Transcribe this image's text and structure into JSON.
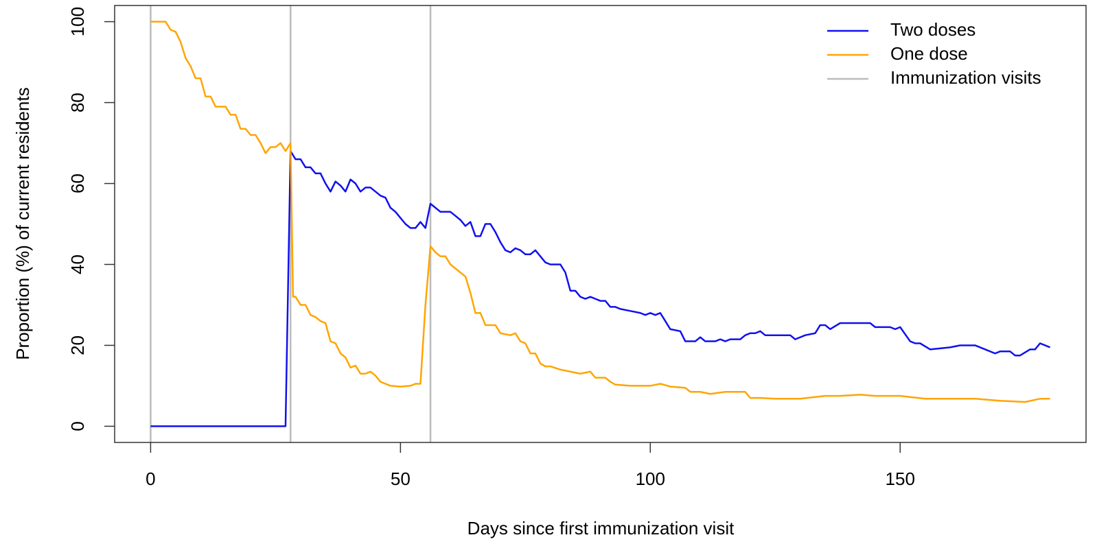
{
  "chart_data": {
    "type": "line",
    "xlabel": "Days since first immunization visit",
    "ylabel": "Proportion (%) of current residents",
    "xlim": [
      -7.2,
      187.2
    ],
    "xticks": [
      0,
      50,
      100,
      150
    ],
    "ylim": [
      -4,
      104
    ],
    "yticks": [
      0,
      20,
      40,
      60,
      80,
      100
    ],
    "legend": "top-right",
    "series": [
      {
        "name": "Two doses",
        "color": "#1010ee",
        "x": [
          0,
          27,
          28,
          29,
          30,
          31,
          32,
          33,
          34,
          35,
          36,
          37,
          38,
          39,
          40,
          41,
          42,
          43,
          44,
          45,
          46,
          47,
          48,
          49,
          50,
          51,
          52,
          53,
          54,
          55,
          56,
          57,
          58,
          60,
          61,
          62,
          63,
          64,
          65,
          66,
          67,
          68,
          69,
          70,
          71,
          72,
          73,
          74,
          75,
          76,
          77,
          78,
          79,
          80,
          82,
          83,
          84,
          85,
          86,
          87,
          88,
          89,
          90,
          91,
          92,
          93,
          94,
          96,
          98,
          99,
          100,
          101,
          102,
          103,
          104,
          106,
          107,
          109,
          110,
          111,
          113,
          114,
          115,
          116,
          118,
          119,
          120,
          121,
          122,
          123,
          128,
          129,
          131,
          133,
          134,
          135,
          136,
          138,
          144,
          145,
          148,
          149,
          150,
          152,
          153,
          154,
          156,
          160,
          162,
          165,
          167,
          169,
          170,
          172,
          173,
          174,
          176,
          177,
          178,
          180
        ],
        "values": [
          0,
          0,
          68,
          66,
          66,
          64,
          64,
          62.5,
          62.5,
          60,
          58,
          60.5,
          59.5,
          58,
          61,
          60,
          58,
          59,
          59,
          58,
          57,
          56.5,
          54,
          53,
          51.5,
          50,
          49,
          49,
          50.5,
          49,
          55,
          54,
          53,
          53,
          52,
          51,
          49.5,
          50.5,
          47,
          47,
          50,
          50,
          48,
          45.5,
          43.5,
          43,
          44,
          43.5,
          42.5,
          42.5,
          43.5,
          42,
          40.5,
          40,
          40,
          38,
          33.5,
          33.5,
          32,
          31.5,
          32,
          31.5,
          31,
          31,
          29.5,
          29.5,
          29,
          28.5,
          28,
          27.5,
          28,
          27.5,
          28,
          26,
          24,
          23.5,
          21,
          21,
          22,
          21,
          21,
          21.5,
          21,
          21.5,
          21.5,
          22.5,
          23,
          23,
          23.5,
          22.5,
          22.5,
          21.5,
          22.5,
          23,
          25,
          25,
          24,
          25.5,
          25.5,
          24.5,
          24.5,
          24,
          24.5,
          21,
          20.5,
          20.5,
          19,
          19.5,
          20,
          20,
          19,
          18,
          18.5,
          18.5,
          17.5,
          17.5,
          19,
          19,
          20.5,
          19.5
        ]
      },
      {
        "name": "One dose",
        "color": "#ffa500",
        "x": [
          0,
          2,
          3,
          4,
          5,
          6,
          7,
          8,
          9,
          10,
          11,
          12,
          13,
          15,
          16,
          17,
          18,
          19,
          20,
          21,
          22,
          23,
          24,
          25,
          26,
          27,
          28,
          28.5,
          29,
          30,
          31,
          32,
          33,
          34,
          35,
          36,
          37,
          38,
          39,
          40,
          41,
          42,
          43,
          44,
          45,
          46,
          48,
          50,
          52,
          53,
          54,
          55,
          56,
          57,
          58,
          59,
          60,
          62,
          63,
          64,
          65,
          66,
          67,
          69,
          70,
          72,
          73,
          74,
          75,
          76,
          77,
          78,
          79,
          80,
          82,
          84,
          86,
          88,
          89,
          91,
          92,
          93,
          96,
          100,
          102,
          104,
          107,
          108,
          110,
          112,
          115,
          118,
          119,
          120,
          122,
          125,
          130,
          135,
          138,
          142,
          145,
          150,
          155,
          160,
          165,
          170,
          175,
          178,
          180
        ],
        "values": [
          100,
          100,
          100,
          98,
          97.5,
          95,
          91,
          89,
          86,
          86,
          81.5,
          81.5,
          79,
          79,
          77,
          77,
          73.5,
          73.5,
          72,
          72,
          70,
          67.5,
          69,
          69,
          70,
          68,
          70,
          32,
          32,
          30,
          30,
          27.5,
          27,
          26,
          25.5,
          21,
          20.5,
          18,
          17,
          14.5,
          15,
          13,
          13,
          13.5,
          12.5,
          11,
          10,
          9.8,
          10,
          10.5,
          10.5,
          30,
          44.5,
          43,
          42,
          42,
          40,
          38,
          37,
          33,
          28,
          28,
          25,
          25,
          23,
          22.5,
          23,
          21,
          20.5,
          18,
          18,
          15.5,
          14.8,
          14.8,
          14,
          13.5,
          13,
          13.5,
          12,
          12,
          11,
          10.3,
          10,
          10,
          10.5,
          9.8,
          9.5,
          8.5,
          8.5,
          8,
          8.5,
          8.5,
          8.5,
          7,
          7,
          6.8,
          6.8,
          7.5,
          7.5,
          7.8,
          7.5,
          7.5,
          6.8,
          6.8,
          6.8,
          6.3,
          6,
          6.8,
          6.8
        ]
      }
    ],
    "vlines": {
      "name": "Immunization visits",
      "color": "#bbbbbb",
      "x": [
        0,
        28,
        56
      ]
    }
  }
}
